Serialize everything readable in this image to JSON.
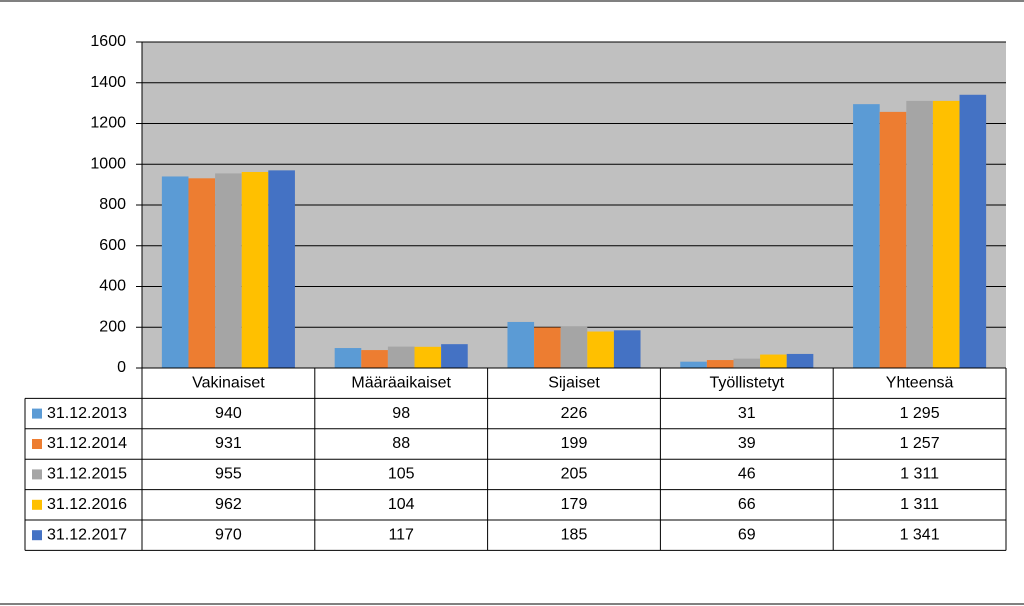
{
  "chart_data": {
    "type": "bar",
    "categories": [
      "Vakinaiset",
      "Määräaikaiset",
      "Sijaiset",
      "Työllistetyt",
      "Yhteensä"
    ],
    "series": [
      {
        "name": "31.12.2013",
        "color": "#5b9bd5",
        "values": [
          940,
          98,
          226,
          31,
          1295
        ],
        "value_labels": [
          "940",
          "98",
          "226",
          "31",
          "1 295"
        ]
      },
      {
        "name": "31.12.2014",
        "color": "#ed7d31",
        "values": [
          931,
          88,
          199,
          39,
          1257
        ],
        "value_labels": [
          "931",
          "88",
          "199",
          "39",
          "1 257"
        ]
      },
      {
        "name": "31.12.2015",
        "color": "#a5a5a5",
        "values": [
          955,
          105,
          205,
          46,
          1311
        ],
        "value_labels": [
          "955",
          "105",
          "205",
          "46",
          "1 311"
        ]
      },
      {
        "name": "31.12.2016",
        "color": "#ffc000",
        "values": [
          962,
          104,
          179,
          66,
          1311
        ],
        "value_labels": [
          "962",
          "104",
          "179",
          "66",
          "1 311"
        ]
      },
      {
        "name": "31.12.2017",
        "color": "#4472c4",
        "values": [
          970,
          117,
          185,
          69,
          1341
        ],
        "value_labels": [
          "970",
          "117",
          "185",
          "69",
          "1 341"
        ]
      }
    ],
    "ylim": [
      0,
      1600
    ],
    "yticks": [
      0,
      200,
      400,
      600,
      800,
      1000,
      1200,
      1400,
      1600
    ],
    "grid": true,
    "plot_background": "#c0c0c0",
    "data_table": true
  }
}
